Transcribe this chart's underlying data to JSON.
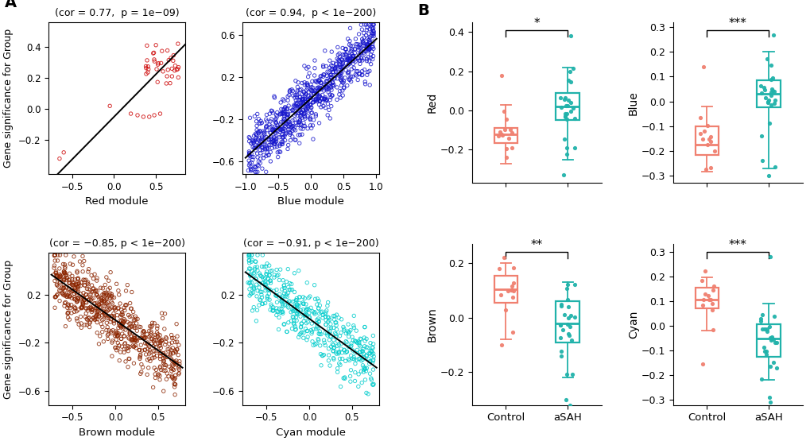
{
  "panel_A": {
    "red": {
      "cor": 0.77,
      "p_text": "(cor = 0.77,  p = 1e−09)",
      "xlabel": "Red module",
      "color": "#CC0000",
      "xlim": [
        -0.78,
        0.85
      ],
      "ylim": [
        -0.42,
        0.56
      ],
      "yticks": [
        -0.2,
        0.0,
        0.2,
        0.4
      ],
      "xticks": [
        -0.5,
        0.0,
        0.5
      ],
      "n_pts": 50
    },
    "blue": {
      "cor": 0.94,
      "p_text": "(cor = 0.94,  p < 1e−200)",
      "xlabel": "Blue module",
      "color": "#0000CC",
      "xlim": [
        -1.05,
        1.05
      ],
      "ylim": [
        -0.72,
        0.72
      ],
      "yticks": [
        -0.6,
        -0.2,
        0.2,
        0.6
      ],
      "xticks": [
        -1.0,
        -0.5,
        0.0,
        0.5,
        1.0
      ],
      "n_pts": 800
    },
    "brown": {
      "cor": -0.85,
      "p_text": "(cor = −0.85, p < 1e−200)",
      "xlabel": "Brown module",
      "color": "#8B2500",
      "xlim": [
        -0.78,
        0.82
      ],
      "ylim": [
        -0.72,
        0.55
      ],
      "yticks": [
        -0.6,
        -0.2,
        0.2
      ],
      "xticks": [
        -0.5,
        0.0,
        0.5
      ],
      "n_pts": 700
    },
    "cyan": {
      "cor": -0.91,
      "p_text": "(cor = −0.91, p < 1e−200)",
      "xlabel": "Cyan module",
      "color": "#00CCCC",
      "xlim": [
        -0.78,
        0.82
      ],
      "ylim": [
        -0.72,
        0.55
      ],
      "yticks": [
        -0.6,
        -0.2,
        0.2
      ],
      "xticks": [
        -0.5,
        0.0,
        0.5
      ],
      "n_pts": 500
    }
  },
  "panel_B": {
    "red": {
      "title": "Red",
      "sig": "*",
      "ylim": [
        -0.37,
        0.45
      ],
      "yticks": [
        -0.2,
        0.0,
        0.2,
        0.4
      ],
      "ctrl_med": -0.12,
      "ctrl_q1": -0.165,
      "ctrl_q3": -0.09,
      "ctrl_wlo": -0.27,
      "ctrl_whi": 0.03,
      "asah_med": 0.02,
      "asah_q1": -0.05,
      "asah_q3": 0.09,
      "asah_wlo": -0.25,
      "asah_whi": 0.22,
      "ctrl_outliers": [
        0.18,
        -0.24
      ],
      "asah_outliers": [
        0.38,
        -0.33
      ]
    },
    "blue": {
      "title": "Blue",
      "sig": "***",
      "ylim": [
        -0.33,
        0.32
      ],
      "yticks": [
        -0.3,
        -0.2,
        -0.1,
        0.0,
        0.1,
        0.2,
        0.3
      ],
      "ctrl_med": -0.175,
      "ctrl_q1": -0.215,
      "ctrl_q3": -0.1,
      "ctrl_wlo": -0.285,
      "ctrl_whi": -0.02,
      "asah_med": 0.03,
      "asah_q1": -0.025,
      "asah_q3": 0.085,
      "asah_wlo": -0.27,
      "asah_whi": 0.2,
      "ctrl_outliers": [
        0.14
      ],
      "asah_outliers": [
        0.27,
        -0.3
      ]
    },
    "brown": {
      "title": "Brown",
      "sig": "**",
      "ylim": [
        -0.32,
        0.27
      ],
      "yticks": [
        -0.2,
        0.0,
        0.2
      ],
      "ctrl_med": 0.105,
      "ctrl_q1": 0.055,
      "ctrl_q3": 0.155,
      "ctrl_wlo": -0.08,
      "ctrl_whi": 0.2,
      "asah_med": -0.02,
      "asah_q1": -0.09,
      "asah_q3": 0.06,
      "asah_wlo": -0.22,
      "asah_whi": 0.13,
      "ctrl_outliers": [
        0.22,
        -0.1
      ],
      "asah_outliers": [
        -0.3,
        -0.32
      ]
    },
    "cyan": {
      "title": "Cyan",
      "sig": "***",
      "ylim": [
        -0.32,
        0.33
      ],
      "yticks": [
        -0.3,
        -0.2,
        -0.1,
        0.0,
        0.1,
        0.2,
        0.3
      ],
      "ctrl_med": 0.105,
      "ctrl_q1": 0.07,
      "ctrl_q3": 0.155,
      "ctrl_wlo": -0.02,
      "ctrl_whi": 0.195,
      "asah_med": -0.05,
      "asah_q1": -0.125,
      "asah_q3": 0.005,
      "asah_wlo": -0.22,
      "asah_whi": 0.09,
      "ctrl_outliers": [
        0.22,
        -0.155
      ],
      "asah_outliers": [
        0.28,
        -0.29,
        -0.31
      ]
    }
  },
  "ylabel_A": "Gene significance for Group",
  "ctrl_color": "#F08070",
  "asah_color": "#20B2AA",
  "bg": "#FFFFFF"
}
